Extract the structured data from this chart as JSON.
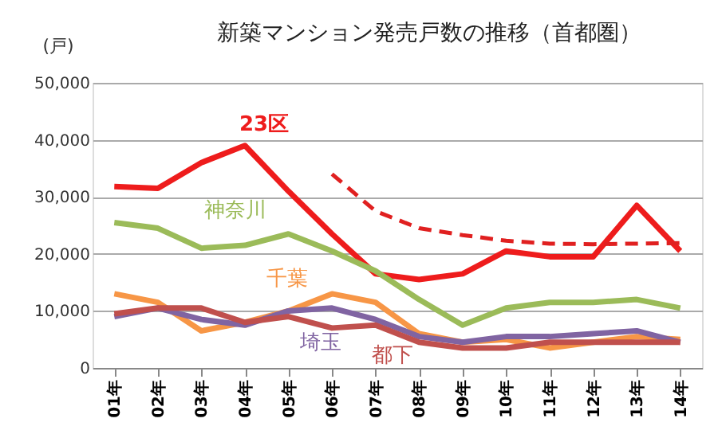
{
  "chart_data": {
    "type": "line",
    "title": "新築マンション発売戸数の推移（首都圏）",
    "ylabel": "(戸)",
    "categories": [
      "01年",
      "02年",
      "03年",
      "04年",
      "05年",
      "06年",
      "07年",
      "08年",
      "09年",
      "10年",
      "11年",
      "12年",
      "13年",
      "14年"
    ],
    "series": [
      {
        "name": "23区",
        "color": "#ee1c1c",
        "values": [
          31800,
          31500,
          36000,
          39000,
          31000,
          23500,
          16500,
          15500,
          16500,
          20500,
          19500,
          19500,
          28500,
          20500
        ]
      },
      {
        "name": "神奈川",
        "color": "#9bbb59",
        "values": [
          25500,
          24500,
          21000,
          21500,
          23500,
          20500,
          17000,
          12000,
          7500,
          10500,
          11500,
          11500,
          12000,
          10500
        ]
      },
      {
        "name": "千葉",
        "color": "#f79646",
        "values": [
          13000,
          11500,
          6500,
          8000,
          10000,
          13000,
          11500,
          6000,
          4500,
          5000,
          3500,
          4500,
          5500,
          5000
        ]
      },
      {
        "name": "埼玉",
        "color": "#8064a2",
        "values": [
          9000,
          10500,
          8500,
          7500,
          10000,
          10500,
          8500,
          5500,
          4500,
          5500,
          5500,
          6000,
          6500,
          4500
        ]
      },
      {
        "name": "都下",
        "color": "#c0504d",
        "values": [
          9500,
          10500,
          10500,
          8000,
          9000,
          7000,
          7500,
          4500,
          3500,
          3500,
          4500,
          4500,
          4500,
          4500
        ]
      },
      {
        "color": "#e02020",
        "line_style": "dashed",
        "values": [
          null,
          null,
          null,
          null,
          null,
          34000,
          27500,
          24500,
          23300,
          22300,
          21800,
          21700,
          21800,
          21900
        ]
      }
    ],
    "ylim": [
      0,
      50000
    ],
    "yticks": [
      {
        "value": 0,
        "label": "0"
      },
      {
        "value": 10000,
        "label": "10,000"
      },
      {
        "value": 20000,
        "label": "20,000"
      },
      {
        "value": 30000,
        "label": "30,000"
      },
      {
        "value": 40000,
        "label": "40,000"
      },
      {
        "value": 50000,
        "label": "50,000"
      }
    ],
    "grid": "y",
    "legend": false,
    "line_style": "solid",
    "marker": "none"
  }
}
